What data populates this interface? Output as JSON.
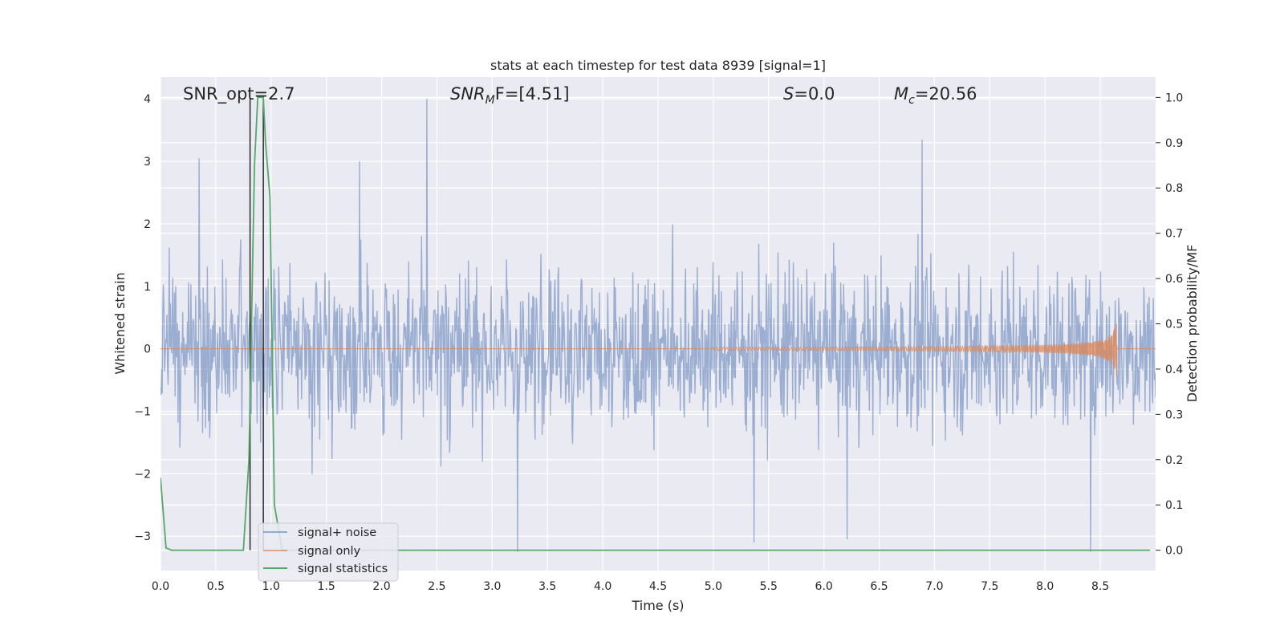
{
  "chart_data": {
    "type": "line",
    "title": "stats at each timestep for test data 8939 [signal=1]",
    "xlabel": "Time (s)",
    "ylabel": "Whitened strain",
    "y2label": "Detection probability/MF",
    "xlim": [
      0.0,
      9.0
    ],
    "ylim": [
      -3.55,
      4.35
    ],
    "y2lim": [
      -0.045,
      1.045
    ],
    "x_ticks": [
      "0.0",
      "0.5",
      "1.0",
      "1.5",
      "2.0",
      "2.5",
      "3.0",
      "3.5",
      "4.0",
      "4.5",
      "5.0",
      "5.5",
      "6.0",
      "6.5",
      "7.0",
      "7.5",
      "8.0",
      "8.5"
    ],
    "y_ticks": [
      "4",
      "3",
      "2",
      "1",
      "0",
      "−1",
      "−2",
      "−3"
    ],
    "y2_ticks": [
      "1.0",
      "0.9",
      "0.8",
      "0.7",
      "0.6",
      "0.5",
      "0.4",
      "0.3",
      "0.2",
      "0.1",
      "0.0"
    ],
    "grid": true,
    "legend": "lower-left",
    "colors": {
      "background": "#eaeaf2",
      "grid": "#ffffff",
      "signal_noise": "#4c72b0",
      "signal_only": "#dd8452",
      "statistics": "#55a868",
      "markers": "#2a2a2a"
    },
    "series": [
      {
        "name": "signal+ noise",
        "axis": "left",
        "description_values": {
          "duration": 9.0,
          "typical_abs_max": 2.0,
          "peaks": [
            {
              "x": 0.35,
              "y": 3.05
            },
            {
              "x": 2.41,
              "y": 4.0
            },
            {
              "x": 6.89,
              "y": 3.35
            },
            {
              "x": 1.8,
              "y": 3.0
            },
            {
              "x": 3.23,
              "y": -3.25
            },
            {
              "x": 8.41,
              "y": -3.25
            },
            {
              "x": 5.37,
              "y": -3.1
            },
            {
              "x": 6.21,
              "y": -3.05
            }
          ]
        }
      },
      {
        "name": "signal only",
        "axis": "left",
        "chirp": {
          "start": 5.0,
          "end": 8.65,
          "peak_amplitude": 0.52
        }
      },
      {
        "name": "signal statistics",
        "axis": "right",
        "x": [
          0.0,
          0.05,
          0.1,
          0.75,
          0.8,
          0.85,
          0.88,
          0.93,
          0.95,
          0.99,
          1.03,
          1.1,
          8.95
        ],
        "y": [
          0.16,
          0.005,
          0.0,
          0.0,
          0.2,
          0.85,
          1.0,
          1.0,
          0.9,
          0.78,
          0.1,
          0.0,
          0.0
        ]
      }
    ],
    "vlines": [
      0.81,
      0.93
    ],
    "annotations": {
      "snr_opt": "SNR_opt=2.7",
      "snr_mf_base": "SNR",
      "snr_mf_sub": "M",
      "snr_mf_rest": "F=[4.51]",
      "s_base": "S",
      "s_rest": "=0.0",
      "mc_base": "M",
      "mc_sub": "c",
      "mc_rest": "=20.56"
    }
  }
}
